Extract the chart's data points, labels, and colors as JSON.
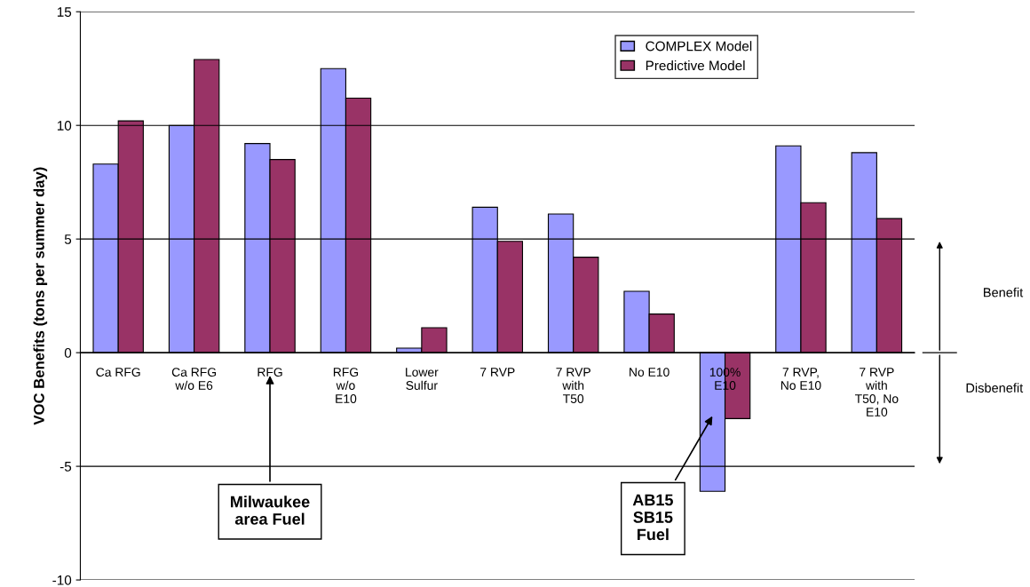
{
  "chart_data": {
    "type": "bar",
    "ylabel": "VOC Benefits (tons per summer day)",
    "categories": [
      "Ca RFG",
      "Ca RFG\nw/o E6",
      "RFG",
      "RFG\nw/o\nE10",
      "Lower\nSulfur",
      "7 RVP",
      "7 RVP\nwith\nT50",
      "No E10",
      "100%\nE10",
      "7 RVP,\nNo E10",
      "7 RVP\nwith\nT50, No\nE10"
    ],
    "series": [
      {
        "name": "COMPLEX Model",
        "color": "#9999ff",
        "values": [
          8.3,
          10.0,
          9.2,
          12.5,
          0.2,
          6.4,
          6.1,
          2.7,
          -6.1,
          9.1,
          8.8
        ]
      },
      {
        "name": "Predictive Model",
        "color": "#993366",
        "values": [
          10.2,
          12.9,
          8.5,
          11.2,
          1.1,
          4.9,
          4.2,
          1.7,
          -2.9,
          6.6,
          5.9
        ]
      }
    ],
    "ylim": [
      -10,
      15
    ],
    "yticks": [
      -10,
      -5,
      0,
      5,
      10,
      15
    ],
    "grid": "y",
    "legend": "top right",
    "annotations": [
      "Milwaukee\narea Fuel",
      "AB15\nSB15\nFuel",
      "Benefit",
      "Disbenefit"
    ]
  }
}
